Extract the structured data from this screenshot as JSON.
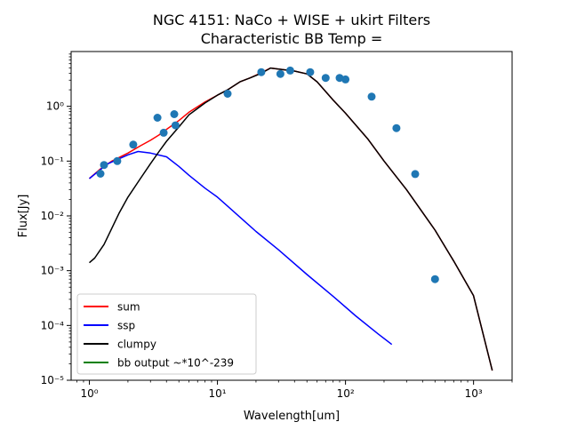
{
  "chart_data": {
    "type": "line",
    "title": "NGC 4151: NaCo + WISE + ukirt Filters",
    "subtitle": "Characteristic BB Temp =",
    "xlabel": "Wavelength[um]",
    "ylabel": "Flux[Jy]",
    "xscale": "log",
    "yscale": "log",
    "xlim": [
      0.72,
      2000
    ],
    "ylim": [
      1e-05,
      10
    ],
    "xticks": [
      {
        "value": 1,
        "label": "10⁰"
      },
      {
        "value": 10,
        "label": "10¹"
      },
      {
        "value": 100,
        "label": "10²"
      },
      {
        "value": 1000,
        "label": "10³"
      }
    ],
    "yticks": [
      {
        "value": 1e-05,
        "label": "10⁻⁵"
      },
      {
        "value": 0.0001,
        "label": "10⁻⁴"
      },
      {
        "value": 0.001,
        "label": "10⁻³"
      },
      {
        "value": 0.01,
        "label": "10⁻²"
      },
      {
        "value": 0.1,
        "label": "10⁻¹"
      },
      {
        "value": 1,
        "label": "10⁰"
      }
    ],
    "grid": false,
    "legend_position": "bottom-left",
    "series": [
      {
        "name": "sum",
        "color": "#ff0000",
        "points": [
          [
            1.0,
            0.048
          ],
          [
            1.2,
            0.07
          ],
          [
            1.5,
            0.1
          ],
          [
            2.0,
            0.14
          ],
          [
            2.5,
            0.19
          ],
          [
            3.0,
            0.24
          ],
          [
            3.5,
            0.3
          ],
          [
            4.0,
            0.38
          ],
          [
            5.0,
            0.55
          ],
          [
            6.0,
            0.78
          ],
          [
            8.0,
            1.2
          ],
          [
            10,
            1.6
          ],
          [
            12,
            2.0
          ],
          [
            15,
            2.8
          ],
          [
            18,
            3.3
          ],
          [
            22,
            4.1
          ],
          [
            26,
            5.0
          ],
          [
            30,
            4.8
          ],
          [
            40,
            4.4
          ],
          [
            50,
            3.9
          ],
          [
            60,
            2.8
          ],
          [
            80,
            1.3
          ],
          [
            100,
            0.75
          ],
          [
            150,
            0.25
          ],
          [
            200,
            0.1
          ],
          [
            300,
            0.03
          ],
          [
            500,
            0.0055
          ],
          [
            700,
            0.0015
          ],
          [
            1000,
            0.00035
          ],
          [
            1400,
            1.5e-05
          ]
        ]
      },
      {
        "name": "ssp",
        "color": "#0000ff",
        "points": [
          [
            1.0,
            0.048
          ],
          [
            1.2,
            0.068
          ],
          [
            1.4,
            0.09
          ],
          [
            1.7,
            0.11
          ],
          [
            2.0,
            0.13
          ],
          [
            2.4,
            0.15
          ],
          [
            3.0,
            0.14
          ],
          [
            4.0,
            0.12
          ],
          [
            5.0,
            0.08
          ],
          [
            6.0,
            0.055
          ],
          [
            8.0,
            0.032
          ],
          [
            10,
            0.022
          ],
          [
            15,
            0.0095
          ],
          [
            20,
            0.0052
          ],
          [
            30,
            0.0024
          ],
          [
            50,
            0.00085
          ],
          [
            80,
            0.00034
          ],
          [
            120,
            0.00015
          ],
          [
            180,
            7e-05
          ],
          [
            230,
            4.5e-05
          ]
        ]
      },
      {
        "name": "clumpy",
        "color": "#000000",
        "points": [
          [
            1.0,
            0.0014
          ],
          [
            1.1,
            0.0017
          ],
          [
            1.3,
            0.003
          ],
          [
            1.5,
            0.006
          ],
          [
            1.7,
            0.011
          ],
          [
            2.0,
            0.022
          ],
          [
            2.5,
            0.048
          ],
          [
            3.0,
            0.09
          ],
          [
            3.5,
            0.15
          ],
          [
            4.0,
            0.23
          ],
          [
            5.0,
            0.42
          ],
          [
            6.0,
            0.7
          ],
          [
            8.0,
            1.15
          ],
          [
            10,
            1.6
          ],
          [
            12,
            2.0
          ],
          [
            15,
            2.8
          ],
          [
            18,
            3.3
          ],
          [
            22,
            4.0
          ],
          [
            26,
            5.0
          ],
          [
            30,
            4.8
          ],
          [
            40,
            4.4
          ],
          [
            50,
            3.9
          ],
          [
            60,
            2.8
          ],
          [
            80,
            1.3
          ],
          [
            100,
            0.75
          ],
          [
            150,
            0.25
          ],
          [
            200,
            0.1
          ],
          [
            300,
            0.03
          ],
          [
            500,
            0.0055
          ],
          [
            700,
            0.0015
          ],
          [
            1000,
            0.00035
          ],
          [
            1400,
            1.5e-05
          ]
        ]
      },
      {
        "name": "bb output ~*10^-239",
        "color": "#008000",
        "points": []
      }
    ],
    "scatter": {
      "color": "#1f77b4",
      "points": [
        [
          1.22,
          0.059
        ],
        [
          1.3,
          0.085
        ],
        [
          1.65,
          0.1
        ],
        [
          2.2,
          0.2
        ],
        [
          3.4,
          0.62
        ],
        [
          3.8,
          0.33
        ],
        [
          4.6,
          0.72
        ],
        [
          4.7,
          0.45
        ],
        [
          12,
          1.7
        ],
        [
          22,
          4.2
        ],
        [
          31,
          3.9
        ],
        [
          37,
          4.5
        ],
        [
          53,
          4.2
        ],
        [
          70,
          3.3
        ],
        [
          90,
          3.3
        ],
        [
          100,
          3.1
        ],
        [
          160,
          1.5
        ],
        [
          250,
          0.4
        ],
        [
          350,
          0.058
        ],
        [
          500,
          0.0007
        ]
      ]
    }
  }
}
